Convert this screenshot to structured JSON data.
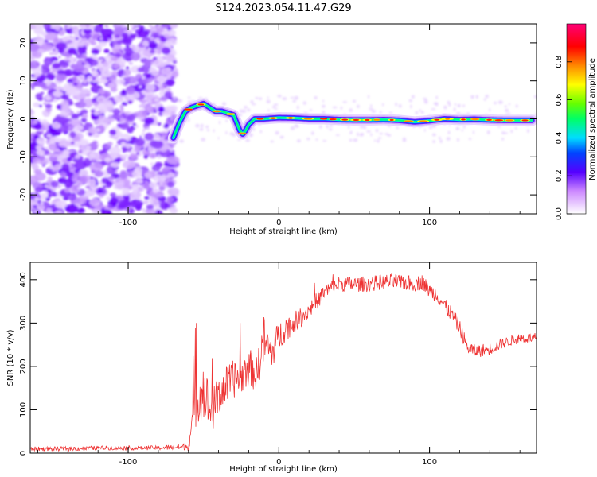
{
  "title": "S124.2023.054.11.47.G29",
  "chart_data": [
    {
      "type": "heatmap",
      "xlabel": "Height of straight line (km)",
      "ylabel": "Frequency (Hz)",
      "xlim": [
        -165,
        171
      ],
      "ylim": [
        -25,
        25
      ],
      "x_ticks": [
        -100,
        0,
        100
      ],
      "y_ticks": [
        -20,
        -10,
        0,
        10,
        20
      ],
      "colorbar": {
        "label": "Normalized spectral amplitude",
        "range": [
          0.0,
          1.0
        ],
        "ticks": [
          0.0,
          0.2,
          0.4,
          0.6,
          0.8
        ],
        "tick_labels": [
          "0.0",
          "0.2",
          "0.4",
          "0.6",
          "0.8"
        ]
      },
      "ridge": {
        "x": [
          -70,
          -66,
          -62,
          -58,
          -54,
          -50,
          -46,
          -42,
          -38,
          -34,
          -30,
          -26,
          -24,
          -22,
          -20,
          -16,
          -10,
          0,
          10,
          20,
          30,
          40,
          50,
          60,
          70,
          80,
          90,
          100,
          110,
          120,
          130,
          140,
          150,
          160,
          168
        ],
        "y": [
          -5,
          -1,
          2,
          3,
          3.5,
          4,
          3,
          2,
          2,
          1.5,
          1,
          -3,
          -4,
          -3,
          -1.5,
          0,
          0,
          0.3,
          0.2,
          0,
          0,
          -0.2,
          -0.3,
          -0.3,
          -0.2,
          -0.4,
          -0.8,
          -0.5,
          0,
          -0.2,
          -0.1,
          -0.3,
          -0.4,
          -0.4,
          -0.4
        ]
      },
      "noise_region_x": [
        -165,
        -72
      ]
    },
    {
      "type": "line",
      "xlabel": "Height of straight line (km)",
      "ylabel": "SNR (10 * v/v)",
      "xlim": [
        -165,
        171
      ],
      "ylim": [
        0,
        440
      ],
      "x_ticks": [
        -100,
        0,
        100
      ],
      "y_ticks": [
        0,
        100,
        200,
        300,
        400
      ],
      "series": [
        {
          "color": "#ee3333",
          "x": [
            -165,
            -140,
            -120,
            -100,
            -80,
            -60,
            -58,
            -55,
            -50,
            -45,
            -40,
            -35,
            -30,
            -25,
            -20,
            -15,
            -10,
            -5,
            0,
            5,
            10,
            20,
            30,
            40,
            50,
            60,
            70,
            80,
            90,
            95,
            100,
            105,
            110,
            115,
            120,
            125,
            130,
            140,
            150,
            160,
            171
          ],
          "y": [
            10,
            10,
            12,
            12,
            12,
            15,
            60,
            120,
            150,
            90,
            130,
            155,
            170,
            175,
            200,
            180,
            260,
            230,
            270,
            290,
            300,
            330,
            370,
            390,
            390,
            390,
            395,
            395,
            390,
            395,
            375,
            365,
            340,
            320,
            290,
            245,
            235,
            240,
            255,
            265,
            265
          ],
          "noise_amplitude": [
            5,
            5,
            5,
            5,
            5,
            8,
            30,
            60,
            70,
            50,
            50,
            45,
            45,
            40,
            45,
            40,
            60,
            40,
            35,
            30,
            25,
            20,
            20,
            18,
            18,
            18,
            18,
            18,
            18,
            18,
            18,
            18,
            18,
            18,
            18,
            16,
            16,
            14,
            12,
            12,
            12
          ]
        }
      ]
    }
  ]
}
